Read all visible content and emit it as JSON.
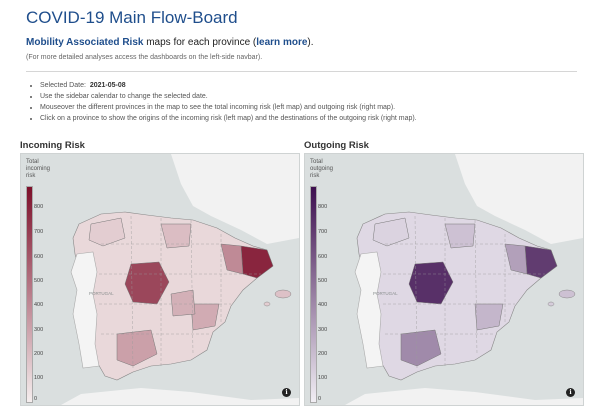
{
  "header": {
    "title": "COVID-19 Main Flow-Board",
    "subtitle_bold": "Mobility Associated Risk",
    "subtitle_rest": " maps for each province (",
    "subtitle_link": "learn more",
    "subtitle_end": ").",
    "note": "(For more detailed analyses access the dashboards on the left-side navbar)."
  },
  "info": {
    "selected_date_label": "Selected Date:",
    "selected_date_value": "2021-05-08",
    "bullets": [
      "Use the sidebar calendar to change the selected date.",
      "Mouseover the different provinces in the map to see the total incoming risk (left map) and outgoing risk (right map).",
      "Click on a province to show the origins of the incoming risk (left map) and the destinations of the outgoing risk (right map)."
    ]
  },
  "maps": {
    "incoming": {
      "title": "Incoming Risk",
      "legend_title": "Total incoming risk",
      "ticks": [
        "800",
        "700",
        "600",
        "500",
        "400",
        "300",
        "200",
        "100",
        "0"
      ],
      "color_high": "#7d0f2a",
      "color_low": "#f5eeee",
      "label_portugal": "PORTUGAL",
      "info_icon": "info-icon"
    },
    "outgoing": {
      "title": "Outgoing Risk",
      "legend_title": "Total outgoing risk",
      "ticks": [
        "800",
        "700",
        "600",
        "500",
        "400",
        "300",
        "200",
        "100",
        "0"
      ],
      "color_high": "#3d0f4f",
      "color_low": "#f1eef4",
      "label_portugal": "PORTUGAL",
      "info_icon": "info-icon"
    }
  }
}
